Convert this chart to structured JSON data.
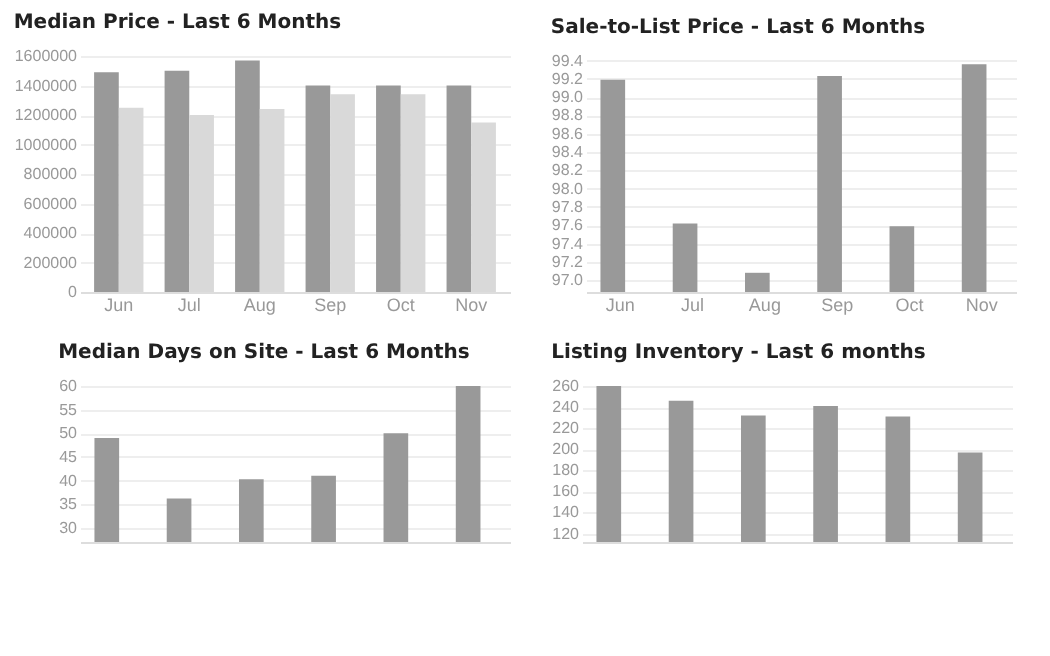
{
  "chart_data": [
    {
      "type": "bar",
      "title": "Median Price - Last 6 Months",
      "categories": [
        "Jun",
        "Jul",
        "Aug",
        "Sep",
        "Oct",
        "Nov"
      ],
      "series": [
        {
          "color": "#999999",
          "values": [
            1490000,
            1500000,
            1570000,
            1400000,
            1400000,
            1400000
          ]
        },
        {
          "color": "#d9d9d9",
          "values": [
            1250000,
            1200000,
            1240000,
            1340000,
            1340000,
            1150000
          ]
        }
      ],
      "ylim": [
        0,
        1600000
      ],
      "yticks": [
        0,
        200000,
        400000,
        600000,
        800000,
        1000000,
        1200000,
        1400000,
        1600000
      ],
      "grid": "y"
    },
    {
      "type": "bar",
      "title": "Sale-to-List Price - Last 6 Months",
      "categories": [
        "Jun",
        "Jul",
        "Aug",
        "Sep",
        "Oct",
        "Nov"
      ],
      "series": [
        {
          "color": "#999999",
          "values": [
            99.19,
            97.62,
            97.08,
            99.23,
            97.59,
            99.36
          ]
        }
      ],
      "ylim": [
        96.87,
        99.45
      ],
      "yticks": [
        {
          "value": 97,
          "label": "97.0"
        },
        97.2,
        97.4,
        97.6,
        97.8,
        {
          "value": 98,
          "label": "98.0"
        },
        98.2,
        98.4,
        98.6,
        98.8,
        {
          "value": 99,
          "label": "99.0"
        },
        99.2,
        99.4
      ],
      "grid": "y"
    },
    {
      "type": "bar",
      "title": "Median Days on Site - Last 6 Months",
      "categories": [
        null,
        null,
        null,
        null,
        null,
        null
      ],
      "series": [
        {
          "color": "#999999",
          "values": [
            49,
            36.2,
            40.3,
            41,
            50,
            60
          ]
        }
      ],
      "ylim": [
        27,
        60
      ],
      "yticks": [
        30,
        35,
        40,
        45,
        50,
        55,
        60
      ],
      "grid": "y",
      "tick_labels": "y"
    },
    {
      "type": "bar",
      "title": "Listing Inventory - Last 6 months",
      "categories": [
        null,
        null,
        null,
        null,
        null,
        null
      ],
      "series": [
        {
          "color": "#999999",
          "values": [
            260,
            246,
            232,
            241,
            231,
            197
          ]
        }
      ],
      "ylim": [
        112,
        260
      ],
      "yticks": [
        120,
        140,
        160,
        180,
        200,
        220,
        240,
        260
      ],
      "grid": "y",
      "tick_labels": "y"
    }
  ]
}
